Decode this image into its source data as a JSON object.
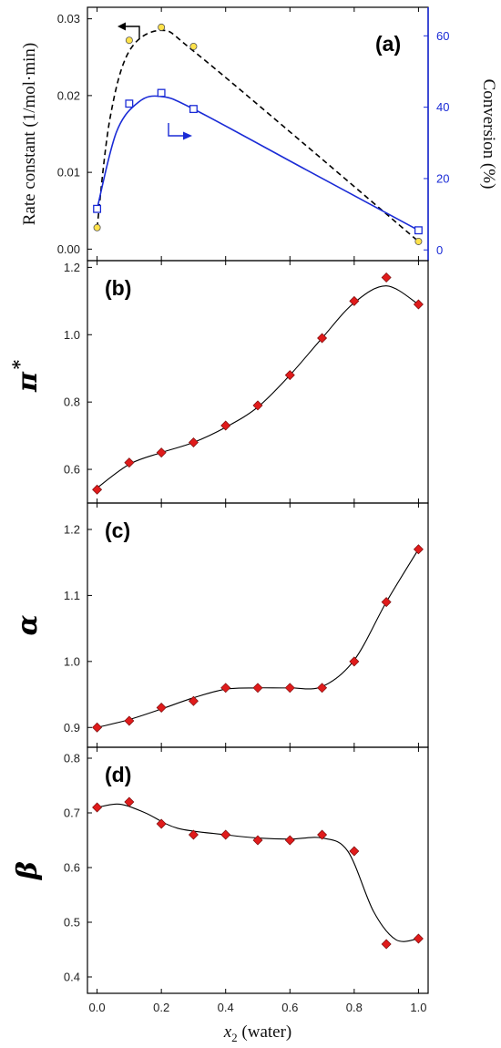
{
  "figure": {
    "xaxis_label": "(water)",
    "xaxis_symbol": "x",
    "xaxis_subscript": "2"
  },
  "chart_data": [
    {
      "panel": "(a)",
      "type": "line",
      "x": [
        0.0,
        0.1,
        0.2,
        0.3,
        1.0
      ],
      "ylabel_left": "Rate constant (1/mol·min)",
      "ylabel_right": "Conversion (%)",
      "ylim_left": [
        -0.0015,
        0.0315
      ],
      "ylim_right": [
        -3,
        68
      ],
      "yticks_left": [
        "0.00",
        "0.01",
        "0.02",
        "0.03"
      ],
      "yticks_right": [
        "0",
        "20",
        "40",
        "60"
      ],
      "series": [
        {
          "axis": "left",
          "color": "#ffe24a",
          "marker": "circle",
          "line": "dashed",
          "line_color": "#000000",
          "values": [
            0.0028,
            0.0272,
            0.0289,
            0.0264,
            0.001
          ]
        },
        {
          "axis": "right",
          "color": "#1a2bd6",
          "marker": "square",
          "line": "solid",
          "line_color": "#1a2bd6",
          "values": [
            11.5,
            41.0,
            44.0,
            39.5,
            5.5
          ]
        }
      ],
      "annotations": [
        "arrow pointing left at the dashed curve",
        "arrow pointing right at the solid curve"
      ]
    },
    {
      "panel": "(b)",
      "type": "scatter",
      "ylabel": "π*",
      "ylim": [
        0.5,
        1.22
      ],
      "yticks": [
        "0.6",
        "0.8",
        "1.0",
        "1.2"
      ],
      "x": [
        0.0,
        0.1,
        0.2,
        0.3,
        0.4,
        0.5,
        0.6,
        0.7,
        0.8,
        0.9,
        1.0
      ],
      "values": [
        0.54,
        0.62,
        0.65,
        0.68,
        0.73,
        0.79,
        0.88,
        0.99,
        1.1,
        1.17,
        1.09
      ],
      "marker": "diamond",
      "color": "#e01b1b",
      "fit_line": true
    },
    {
      "panel": "(c)",
      "type": "scatter",
      "ylabel": "α",
      "ylim": [
        0.87,
        1.24
      ],
      "yticks": [
        "0.9",
        "1.0",
        "1.1",
        "1.2"
      ],
      "x": [
        0.0,
        0.1,
        0.2,
        0.3,
        0.4,
        0.5,
        0.6,
        0.7,
        0.8,
        0.9,
        1.0
      ],
      "values": [
        0.9,
        0.91,
        0.93,
        0.94,
        0.96,
        0.96,
        0.96,
        0.96,
        1.0,
        1.09,
        1.17
      ],
      "marker": "diamond",
      "color": "#e01b1b",
      "fit_line": true
    },
    {
      "panel": "(d)",
      "type": "scatter",
      "ylabel": "β",
      "ylim": [
        0.37,
        0.82
      ],
      "yticks": [
        "0.4",
        "0.5",
        "0.6",
        "0.7",
        "0.8"
      ],
      "x": [
        0.0,
        0.1,
        0.2,
        0.3,
        0.4,
        0.5,
        0.6,
        0.7,
        0.8,
        0.9,
        1.0
      ],
      "values": [
        0.71,
        0.72,
        0.68,
        0.66,
        0.66,
        0.65,
        0.65,
        0.66,
        0.63,
        0.46,
        0.47
      ],
      "marker": "diamond",
      "color": "#e01b1b",
      "fit_line": true
    }
  ],
  "xaxis": {
    "ticks": [
      "0.0",
      "0.2",
      "0.4",
      "0.6",
      "0.8",
      "1.0"
    ],
    "xlim": [
      -0.03,
      1.03
    ]
  }
}
